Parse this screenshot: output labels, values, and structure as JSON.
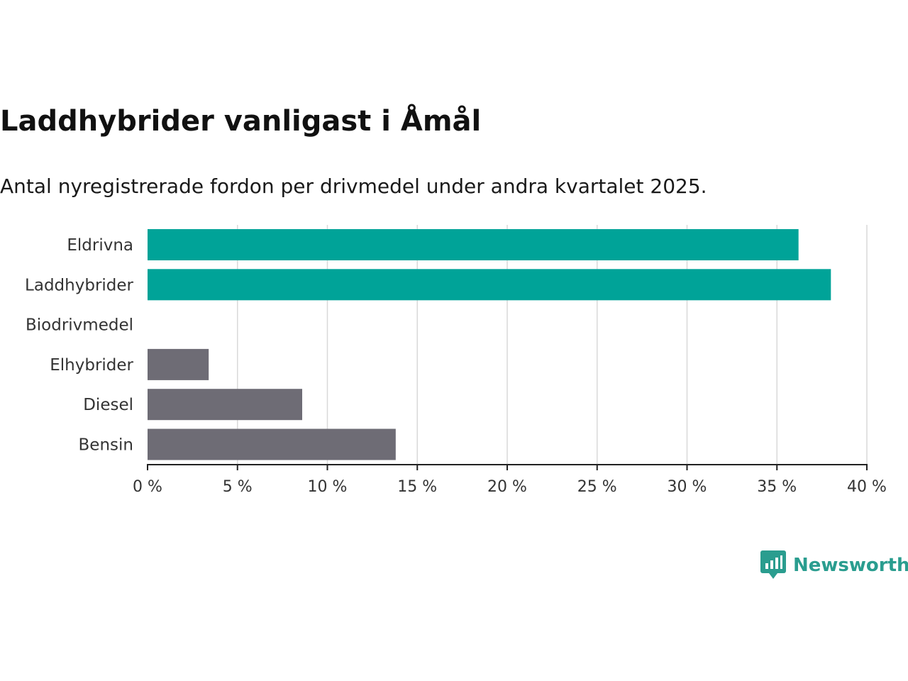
{
  "header": {
    "title": "Laddhybrider vanligast i Åmål",
    "subtitle": "Antal nyregistrerade fordon per drivmedel under andra kvartalet 2025."
  },
  "brand": {
    "name": "Newsworthy",
    "icon": "newsworthy-logo-icon",
    "color": "#2a9d8f"
  },
  "chart_data": {
    "type": "bar",
    "orientation": "horizontal",
    "categories": [
      "Eldrivna",
      "Laddhybrider",
      "Biodrivmedel",
      "Elhybrider",
      "Diesel",
      "Bensin"
    ],
    "values": [
      36.2,
      38.0,
      0,
      3.4,
      8.6,
      13.8
    ],
    "colors": [
      "#00a398",
      "#00a398",
      "#6e6c75",
      "#6e6c75",
      "#6e6c75",
      "#6e6c75"
    ],
    "xlim": [
      0,
      40
    ],
    "xticks": [
      0,
      5,
      10,
      15,
      20,
      25,
      30,
      35,
      40
    ],
    "tick_labels": [
      "0 %",
      "5 %",
      "10 %",
      "15 %",
      "20 %",
      "25 %",
      "30 %",
      "35 %",
      "40 %"
    ],
    "grid": true
  }
}
